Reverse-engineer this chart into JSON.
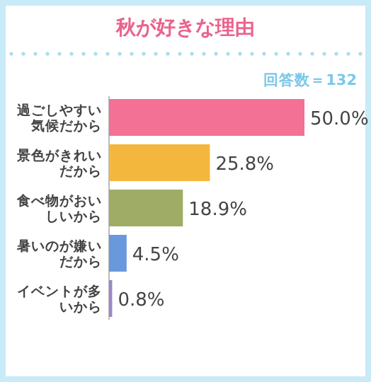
{
  "chart_data": {
    "type": "bar",
    "orientation": "horizontal",
    "title": "秋が好きな理由",
    "annotations": [
      "回答数＝132"
    ],
    "categories": [
      "過ごしやすい気候だから",
      "景色がきれいだから",
      "食べ物がおいしいから",
      "暑いのが嫌いだから",
      "イベントが多いから"
    ],
    "values": [
      50.0,
      25.8,
      18.9,
      4.5,
      0.8
    ],
    "colors": [
      "#f27194",
      "#f4b73d",
      "#9eac66",
      "#6a98dc",
      "#9b87c9"
    ],
    "value_labels": [
      "50.0%",
      "25.8%",
      "18.9%",
      "4.5%",
      "0.8%"
    ]
  }
}
